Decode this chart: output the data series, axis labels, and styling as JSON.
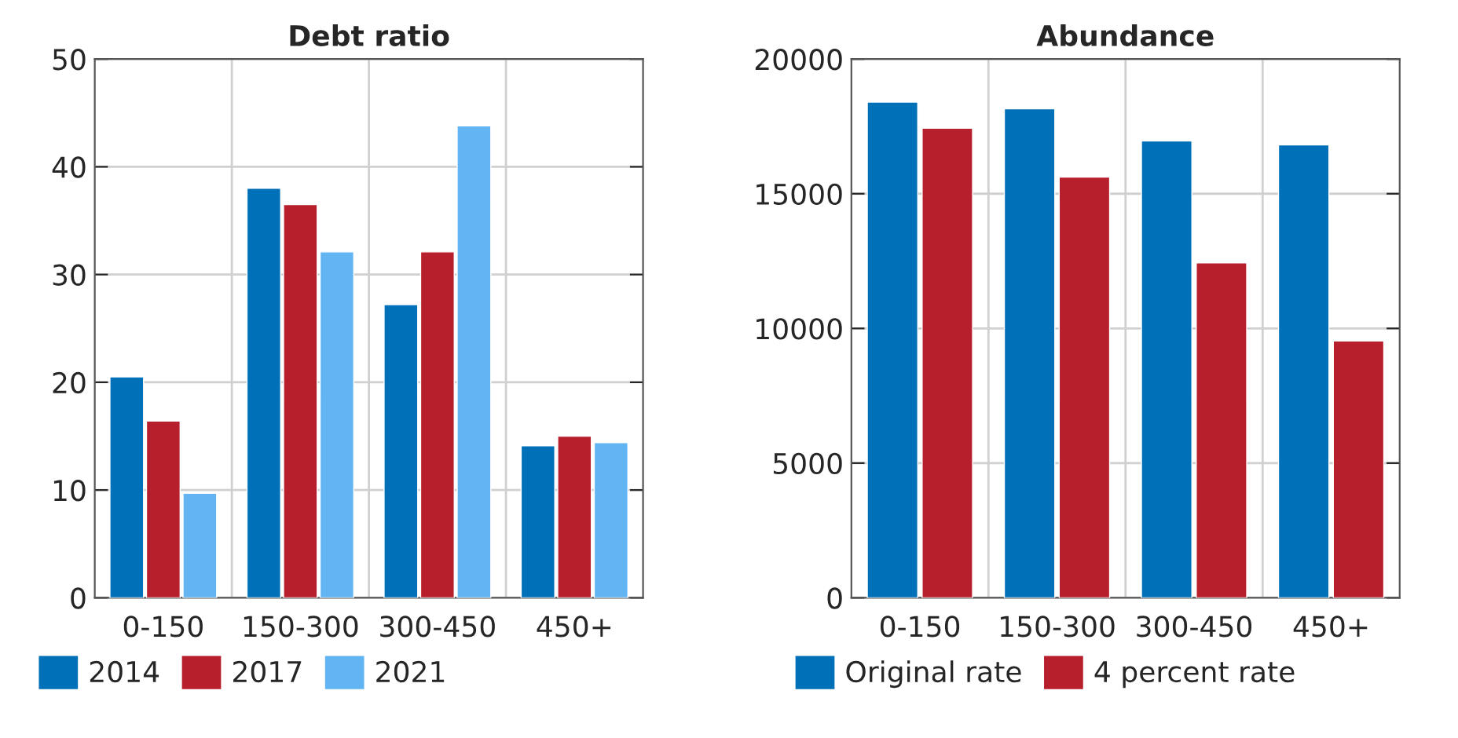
{
  "chart_data": [
    {
      "type": "bar",
      "title": "Debt ratio",
      "categories": [
        "0-150",
        "150-300",
        "300-450",
        "450+"
      ],
      "series": [
        {
          "name": "2014",
          "color": "#0070b8",
          "values": [
            20.5,
            38.0,
            27.2,
            14.1
          ]
        },
        {
          "name": "2017",
          "color": "#b81f2d",
          "values": [
            16.4,
            36.5,
            32.1,
            15.0
          ]
        },
        {
          "name": "2021",
          "color": "#62b5f2",
          "values": [
            9.7,
            32.1,
            43.8,
            14.4
          ]
        }
      ],
      "ylim": [
        0,
        50
      ],
      "yticks": [
        0,
        10,
        20,
        30,
        40,
        50
      ],
      "grid": true,
      "legend": "bottom left"
    },
    {
      "type": "bar",
      "title": "Abundance",
      "categories": [
        "0-150",
        "150-300",
        "300-450",
        "450+"
      ],
      "series": [
        {
          "name": "Original rate",
          "color": "#0070b8",
          "values": [
            18400,
            18150,
            16960,
            16810
          ]
        },
        {
          "name": "4 percent rate",
          "color": "#b81f2d",
          "values": [
            17430,
            15620,
            12430,
            9530
          ]
        }
      ],
      "ylim": [
        0,
        20000
      ],
      "yticks": [
        0,
        5000,
        10000,
        15000,
        20000
      ],
      "grid": true,
      "legend": "bottom left"
    }
  ]
}
